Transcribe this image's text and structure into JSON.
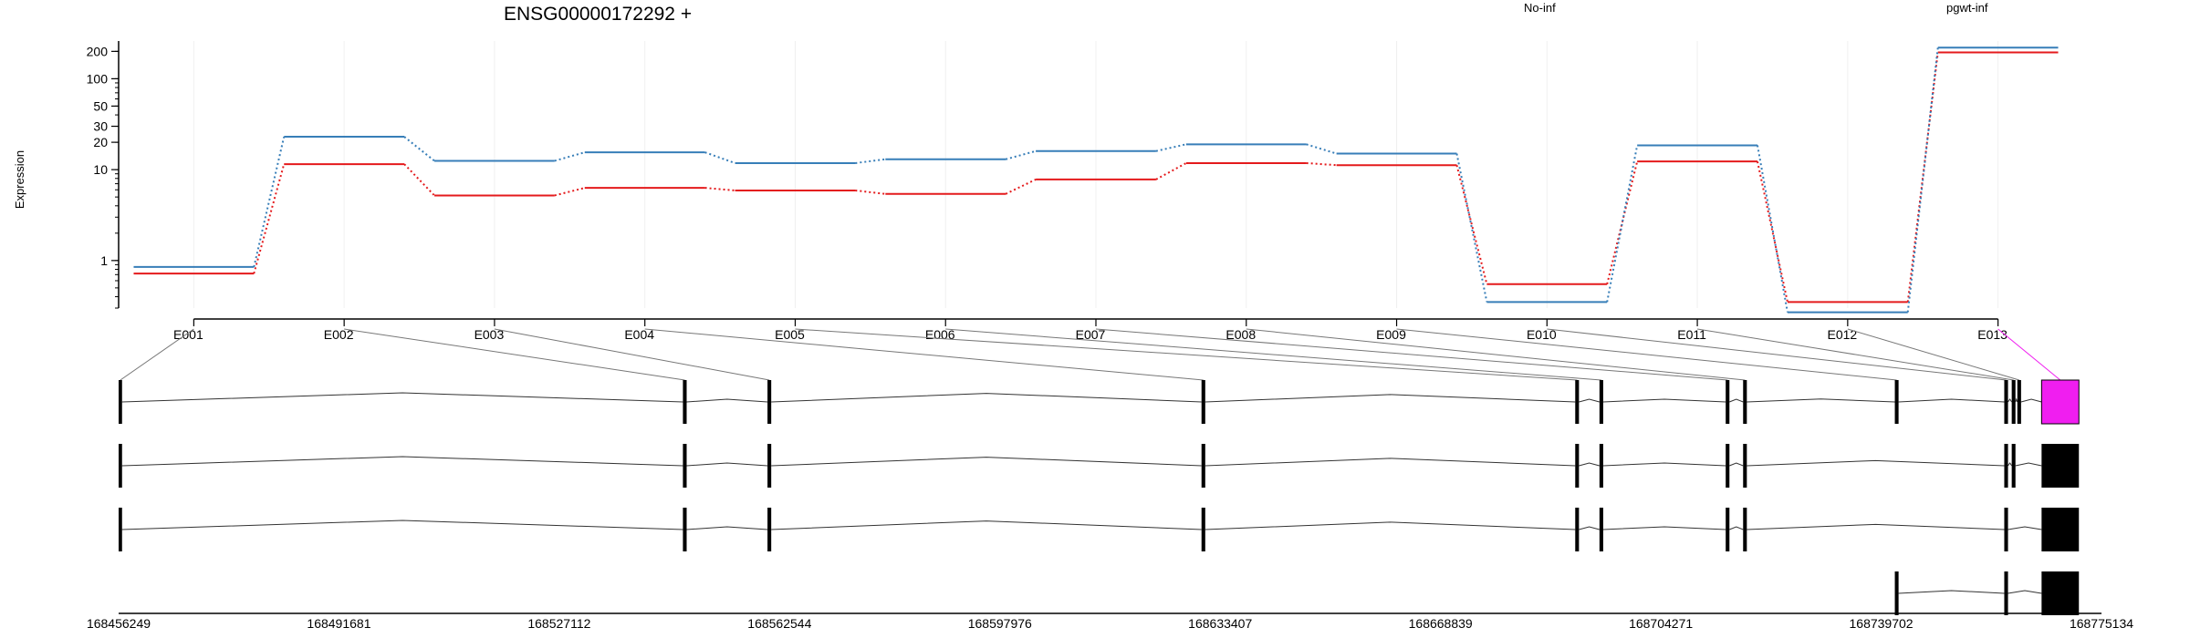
{
  "chart_data": {
    "type": "line",
    "title": "ENSG00000172292 +",
    "ylabel": "Expression",
    "y_scale": "log",
    "y_ticks": [
      1,
      10,
      20,
      30,
      50,
      100,
      200
    ],
    "ylim": [
      0.3,
      260
    ],
    "categories": [
      "E001",
      "E002",
      "E003",
      "E004",
      "E005",
      "E006",
      "E007",
      "E008",
      "E009",
      "E010",
      "E011",
      "E012",
      "E013"
    ],
    "series": [
      {
        "name": "No-inf",
        "color": "#e41a1c",
        "values": [
          0.72,
          11.5,
          5.2,
          6.3,
          5.9,
          5.4,
          7.8,
          11.8,
          11.2,
          0.55,
          12.3,
          0.35,
          195
        ]
      },
      {
        "name": "pgwt-inf",
        "color": "#377eb8",
        "values": [
          0.85,
          23,
          12.5,
          15.5,
          11.8,
          13,
          16,
          19,
          15,
          0.35,
          18.5,
          0.27,
          220
        ]
      }
    ],
    "legend_position": "top-right",
    "coordinate_labels": [
      "168456249",
      "168491681",
      "168527112",
      "168562544",
      "168597976",
      "168633407",
      "168668839",
      "168704271",
      "168739702",
      "168775134"
    ],
    "coordinate_range": [
      168456249,
      168775134
    ],
    "exons": [
      [
        168456249,
        168456800
      ],
      [
        168547000,
        168547600
      ],
      [
        168560600,
        168561200
      ],
      [
        168630400,
        168631000
      ],
      [
        168690500,
        168691100
      ],
      [
        168694400,
        168695000
      ],
      [
        168714700,
        168715300
      ],
      [
        168717500,
        168718100
      ],
      [
        168741900,
        168742500
      ],
      [
        168759500,
        168760100
      ],
      [
        168760700,
        168761300
      ],
      [
        168761600,
        168762200
      ],
      [
        168765500,
        168771500
      ]
    ],
    "transcripts": [
      {
        "exons": [
          0,
          1,
          2,
          3,
          4,
          5,
          6,
          7,
          8,
          9,
          10,
          11,
          12
        ],
        "highlight_exon": 12
      },
      {
        "exons": [
          0,
          1,
          2,
          3,
          4,
          5,
          6,
          7,
          9,
          10,
          12
        ]
      },
      {
        "exons": [
          0,
          1,
          2,
          3,
          4,
          5,
          6,
          7,
          9,
          12
        ]
      },
      {
        "exons": [
          8,
          9,
          12
        ]
      }
    ],
    "colors": {
      "highlight": "#f01ef0",
      "exon": "#000000"
    }
  }
}
